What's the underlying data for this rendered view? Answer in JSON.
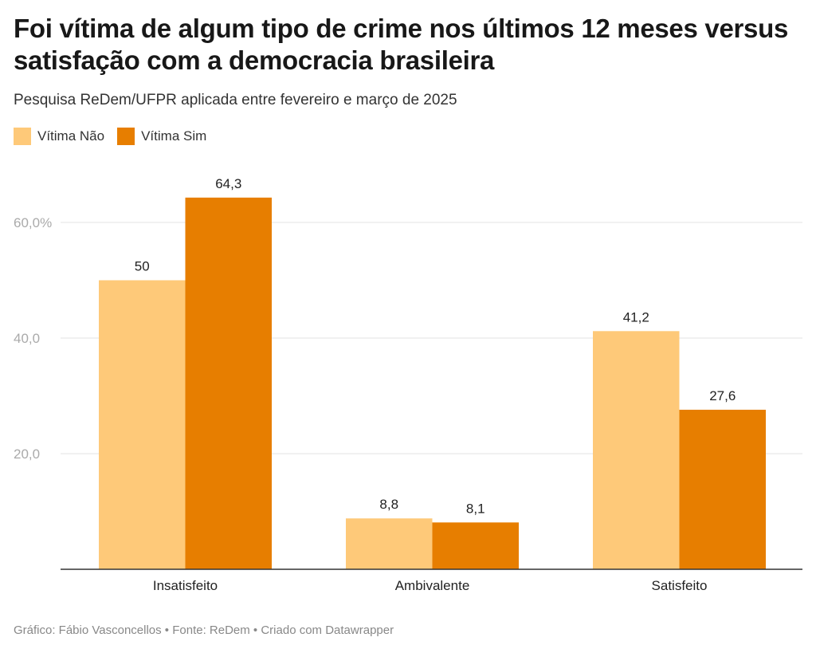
{
  "chart_data": {
    "type": "bar",
    "title": "Foi vítima de algum tipo de crime nos últimos 12 meses versus satisfação com a democracia brasileira",
    "subtitle": "Pesquisa ReDem/UFPR aplicada entre fevereiro e março de 2025",
    "categories": [
      "Insatisfeito",
      "Ambivalente",
      "Satisfeito"
    ],
    "series": [
      {
        "name": "Vítima Não",
        "color": "#fec979",
        "values": [
          50,
          8.8,
          41.2
        ],
        "labels": [
          "50",
          "8,8",
          "41,2"
        ]
      },
      {
        "name": "Vítima Sim",
        "color": "#e77e00",
        "values": [
          64.3,
          8.1,
          27.6
        ],
        "labels": [
          "64,3",
          "8,1",
          "27,6"
        ]
      }
    ],
    "yticks": [
      {
        "value": 20,
        "label": "20,0"
      },
      {
        "value": 40,
        "label": "40,0"
      },
      {
        "value": 60,
        "label": "60,0%"
      }
    ],
    "ylim": [
      0,
      64.3
    ],
    "grid": true,
    "legend": "top-left",
    "footer": "Gráfico: Fábio Vasconcellos • Fonte: ReDem • Criado com Datawrapper"
  }
}
